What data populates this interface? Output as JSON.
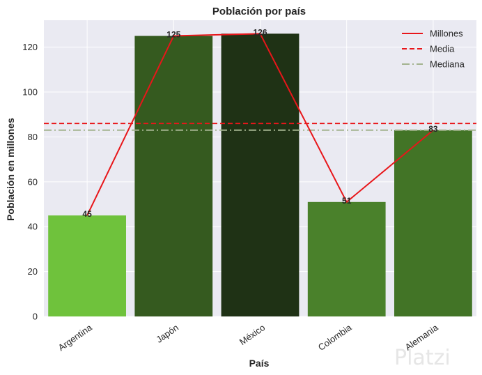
{
  "chart_data": {
    "type": "bar",
    "title": "Población por país",
    "xlabel": "País",
    "ylabel": "Población en millones",
    "categories": [
      "Argentina",
      "Japón",
      "México",
      "Colombia",
      "Alemania"
    ],
    "values": [
      45,
      125,
      126,
      51,
      83
    ],
    "bar_colors": [
      "#6fc23c",
      "#355a1f",
      "#1f3215",
      "#4a812b",
      "#427426"
    ],
    "data_labels": [
      "45",
      "125",
      "126",
      "51",
      "83"
    ],
    "line_series": {
      "name": "Millones",
      "values": [
        45,
        125,
        126,
        51,
        83
      ],
      "color": "#e8161a"
    },
    "mean": {
      "name": "Media",
      "value": 86,
      "color": "#e8161a"
    },
    "median": {
      "name": "Mediana",
      "value": 83,
      "color": "#a3b38f"
    },
    "ylim": [
      0,
      132
    ],
    "yticks": [
      0,
      20,
      40,
      60,
      80,
      100,
      120
    ],
    "grid": true,
    "legend_position": "top-right",
    "legend": [
      "Millones",
      "Media",
      "Mediana"
    ],
    "plot_background": "#eaeaf2"
  },
  "watermark": "Platzi"
}
